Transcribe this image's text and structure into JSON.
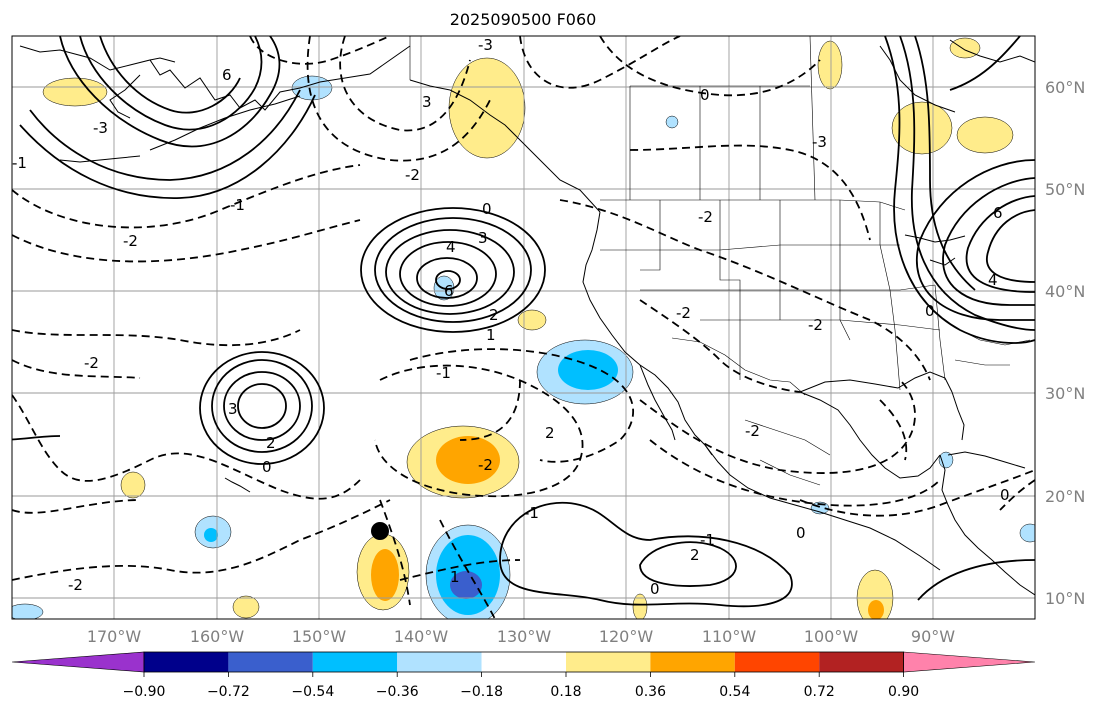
{
  "map": {
    "title": "2025090500 F060",
    "lat_labels": [
      "60°N",
      "50°N",
      "40°N",
      "30°N",
      "20°N",
      "10°N"
    ],
    "lon_labels": [
      "170°W",
      "160°W",
      "150°W",
      "140°W",
      "130°W",
      "120°W",
      "110°W",
      "100°W",
      "90°W"
    ],
    "extent": {
      "lon_min": -180,
      "lon_max": -80,
      "lat_min": 8,
      "lat_max": 65
    }
  },
  "colorbar": {
    "tick_labels": [
      "−0.90",
      "−0.72",
      "−0.54",
      "−0.36",
      "−0.18",
      "0.18",
      "0.36",
      "0.54",
      "0.72",
      "0.90"
    ],
    "colors": [
      "#9a32cd",
      "#00008b",
      "#3a5fcd",
      "#00bfff",
      "#b0e2ff",
      "#ffffff",
      "#ffec8b",
      "#ffa500",
      "#ff4500",
      "#b22222",
      "#ff82ab"
    ]
  },
  "contour_labels": [
    "-3",
    "6",
    "-3",
    "3",
    "-2",
    "0",
    "-3",
    "-1",
    "-2",
    "-2",
    "0",
    "4",
    "3",
    "6",
    "2",
    "1",
    "-2",
    "-1",
    "3",
    "2",
    "0",
    "-2",
    "2",
    "-2",
    "-1",
    "-1",
    "2",
    "1",
    "-2",
    "0",
    "0",
    "-2",
    "-1",
    "6",
    "4",
    "0",
    "-2",
    "0"
  ],
  "markers": [
    {
      "name": "storm-center",
      "lon": -144,
      "lat": 16.5
    }
  ]
}
